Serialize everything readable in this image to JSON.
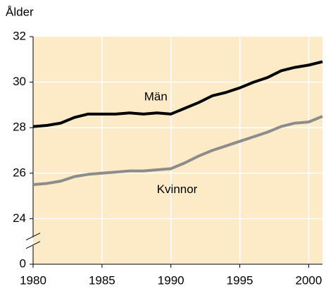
{
  "chart_data": {
    "type": "line",
    "y_label": "Ålder",
    "x": [
      1980,
      1981,
      1982,
      1983,
      1984,
      1985,
      1986,
      1987,
      1988,
      1989,
      1990,
      1991,
      1992,
      1993,
      1994,
      1995,
      1996,
      1997,
      1998,
      1999,
      2000,
      2001
    ],
    "series": [
      {
        "name": "Män",
        "color": "#000000",
        "values": [
          28.05,
          28.1,
          28.2,
          28.45,
          28.6,
          28.6,
          28.6,
          28.65,
          28.6,
          28.65,
          28.6,
          28.85,
          29.1,
          29.4,
          29.55,
          29.75,
          30.0,
          30.2,
          30.5,
          30.65,
          30.75,
          30.9
        ]
      },
      {
        "name": "Kvinnor",
        "color": "#8c8c8c",
        "values": [
          25.5,
          25.55,
          25.65,
          25.85,
          25.95,
          26.0,
          26.05,
          26.1,
          26.1,
          26.15,
          26.2,
          26.45,
          26.75,
          27.0,
          27.2,
          27.4,
          27.6,
          27.8,
          28.05,
          28.2,
          28.25,
          28.5
        ]
      }
    ],
    "xlim": [
      1980,
      2001
    ],
    "xticks": [
      1980,
      1985,
      1990,
      1995,
      2000
    ],
    "ylim": [
      0,
      32
    ],
    "yticks": [
      0,
      24,
      26,
      28,
      30,
      32
    ],
    "axis_break": true,
    "grid": true,
    "background": "#fcebc6"
  }
}
